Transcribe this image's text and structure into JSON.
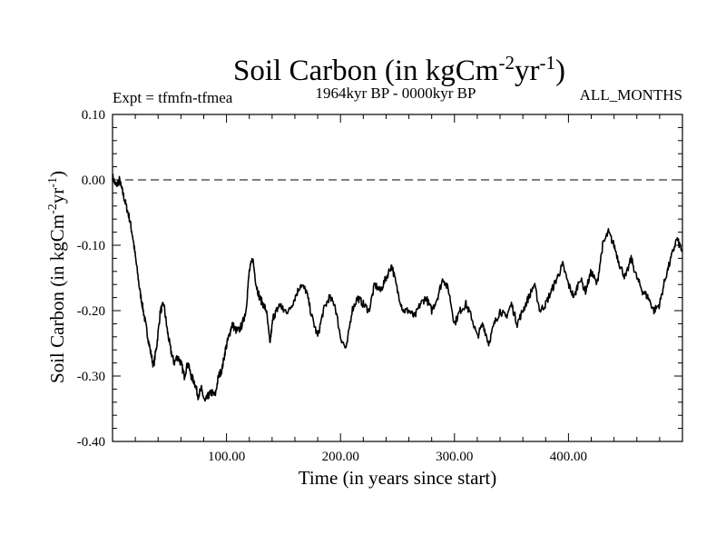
{
  "chart_data": {
    "type": "line",
    "title": "Soil Carbon (in kgCm-2yr-1)",
    "title_parts": {
      "base": "Soil Carbon (in kgCm",
      "exp1": "-2",
      "mid": "yr",
      "exp2": "-1",
      "end": ")"
    },
    "header_left": "Expt = tfmfn-tfmea",
    "header_center": "1964kyr BP - 0000kyr BP",
    "header_right": "ALL_MONTHS",
    "xlabel": "Time (in years since start)",
    "ylabel": "Soil Carbon (in kgCm-2yr-1)",
    "ylabel_parts": {
      "base": "Soil Carbon (in kgCm",
      "exp1": "-2",
      "mid": "yr",
      "exp2": "-1",
      "end": ")"
    },
    "xlim": [
      0,
      500
    ],
    "ylim": [
      -0.4,
      0.1
    ],
    "x_ticks": [
      {
        "value": 100,
        "label": "100.00"
      },
      {
        "value": 200,
        "label": "200.00"
      },
      {
        "value": 300,
        "label": "300.00"
      },
      {
        "value": 400,
        "label": "400.00"
      }
    ],
    "y_ticks": [
      {
        "value": 0.1,
        "label": "0.10"
      },
      {
        "value": 0.0,
        "label": "0.00"
      },
      {
        "value": -0.1,
        "label": "-0.10"
      },
      {
        "value": -0.2,
        "label": "-0.20"
      },
      {
        "value": -0.3,
        "label": "-0.30"
      },
      {
        "value": -0.4,
        "label": "-0.40"
      }
    ],
    "reference_line": {
      "y": 0.0,
      "style": "dashed"
    },
    "grid": false,
    "series": [
      {
        "name": "tfmfn-tfmea",
        "color": "#000000",
        "x": [
          0,
          3,
          6,
          9,
          12,
          15,
          18,
          21,
          24,
          27,
          30,
          33,
          36,
          39,
          42,
          45,
          48,
          51,
          54,
          57,
          60,
          63,
          66,
          69,
          72,
          75,
          78,
          81,
          84,
          87,
          90,
          93,
          96,
          99,
          102,
          105,
          108,
          111,
          114,
          117,
          120,
          123,
          126,
          129,
          132,
          135,
          138,
          141,
          144,
          147,
          150,
          155,
          160,
          165,
          170,
          175,
          180,
          185,
          190,
          195,
          200,
          205,
          210,
          215,
          220,
          225,
          230,
          235,
          240,
          245,
          250,
          255,
          260,
          265,
          270,
          275,
          280,
          285,
          290,
          295,
          300,
          305,
          310,
          315,
          320,
          325,
          330,
          335,
          340,
          345,
          350,
          355,
          360,
          365,
          370,
          375,
          380,
          385,
          390,
          395,
          400,
          405,
          410,
          415,
          420,
          425,
          430,
          435,
          440,
          445,
          450,
          455,
          460,
          465,
          470,
          475,
          480,
          485,
          490,
          495,
          500
        ],
        "y": [
          0.005,
          -0.01,
          0.0,
          -0.02,
          -0.04,
          -0.06,
          -0.09,
          -0.13,
          -0.17,
          -0.2,
          -0.23,
          -0.26,
          -0.285,
          -0.25,
          -0.2,
          -0.19,
          -0.23,
          -0.26,
          -0.28,
          -0.27,
          -0.28,
          -0.3,
          -0.28,
          -0.3,
          -0.31,
          -0.33,
          -0.32,
          -0.34,
          -0.33,
          -0.325,
          -0.33,
          -0.3,
          -0.29,
          -0.26,
          -0.24,
          -0.22,
          -0.23,
          -0.23,
          -0.22,
          -0.2,
          -0.14,
          -0.12,
          -0.16,
          -0.18,
          -0.19,
          -0.2,
          -0.25,
          -0.21,
          -0.2,
          -0.19,
          -0.2,
          -0.2,
          -0.18,
          -0.16,
          -0.17,
          -0.21,
          -0.24,
          -0.2,
          -0.18,
          -0.19,
          -0.24,
          -0.26,
          -0.2,
          -0.18,
          -0.19,
          -0.2,
          -0.16,
          -0.17,
          -0.15,
          -0.13,
          -0.17,
          -0.2,
          -0.2,
          -0.21,
          -0.19,
          -0.18,
          -0.2,
          -0.18,
          -0.15,
          -0.17,
          -0.22,
          -0.2,
          -0.19,
          -0.21,
          -0.24,
          -0.22,
          -0.25,
          -0.22,
          -0.2,
          -0.21,
          -0.19,
          -0.22,
          -0.2,
          -0.18,
          -0.16,
          -0.2,
          -0.19,
          -0.17,
          -0.15,
          -0.13,
          -0.16,
          -0.18,
          -0.15,
          -0.17,
          -0.14,
          -0.16,
          -0.1,
          -0.08,
          -0.1,
          -0.13,
          -0.15,
          -0.12,
          -0.15,
          -0.17,
          -0.18,
          -0.2,
          -0.19,
          -0.15,
          -0.12,
          -0.09,
          -0.11
        ]
      }
    ]
  }
}
